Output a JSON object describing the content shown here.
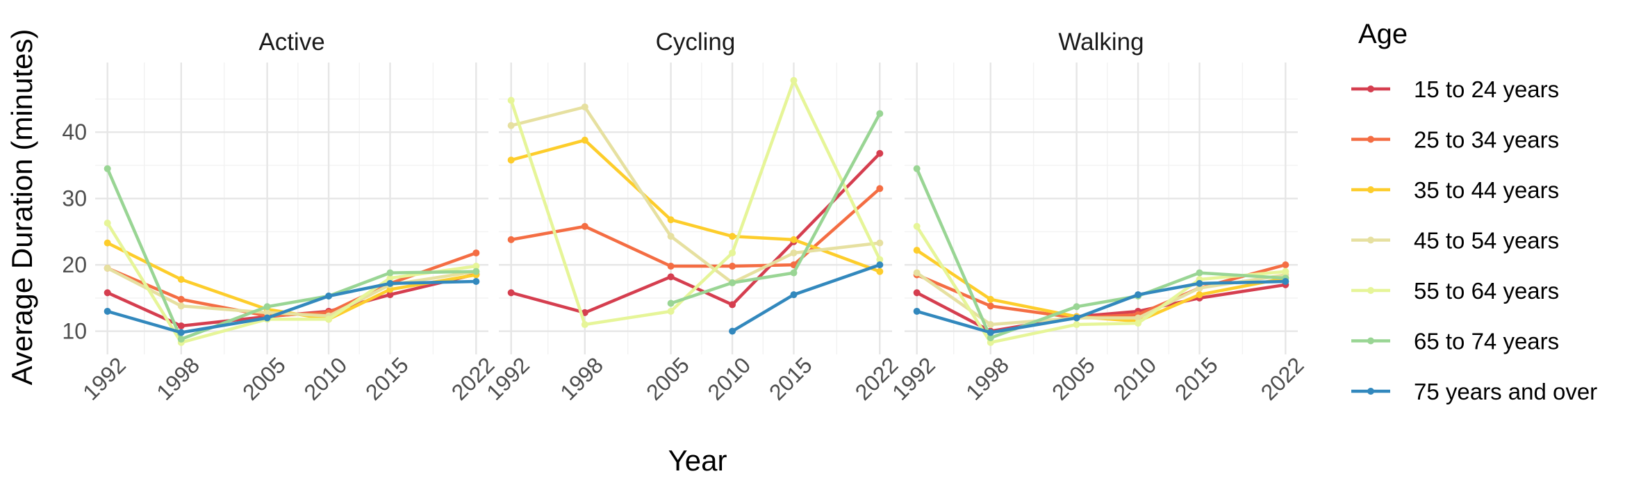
{
  "chart_data": {
    "type": "line",
    "xlabel": "Year",
    "ylabel": "Average Duration (minutes)",
    "x_ticks": [
      1992,
      1998,
      2005,
      2010,
      2015,
      2022
    ],
    "y_ticks": [
      10,
      20,
      30,
      40
    ],
    "xlim": [
      1991,
      2023
    ],
    "ylim": [
      6.5,
      50.5
    ],
    "grid": true,
    "legend": {
      "title": "Age",
      "placement": "right",
      "entries": [
        "15 to 24 years",
        "25 to 34 years",
        "35 to 44 years",
        "45 to 54 years",
        "55 to 64 years",
        "65 to 74 years",
        "75 years and over"
      ]
    },
    "colors": {
      "15 to 24 years": "#d53e4f",
      "25 to 34 years": "#f46d43",
      "35 to 44 years": "#fdcd2b",
      "45 to 54 years": "#e6e0a0",
      "55 to 64 years": "#e6f598",
      "65 to 74 years": "#99d594",
      "75 years and over": "#3288bd"
    },
    "panels": [
      {
        "title": "Active",
        "series": [
          {
            "name": "15 to 24 years",
            "x": [
              1992,
              1998,
              2005,
              2010,
              2015,
              2022
            ],
            "y": [
              15.8,
              10.8,
              12.2,
              13.0,
              15.5,
              18.6
            ]
          },
          {
            "name": "25 to 34 years",
            "x": [
              1992,
              1998,
              2005,
              2010,
              2015,
              2022
            ],
            "y": [
              19.5,
              14.8,
              12.3,
              12.8,
              17.2,
              21.8
            ]
          },
          {
            "name": "35 to 44 years",
            "x": [
              1992,
              1998,
              2005,
              2010,
              2015,
              2022
            ],
            "y": [
              23.3,
              17.8,
              13.3,
              11.8,
              16.3,
              18.5
            ]
          },
          {
            "name": "45 to 54 years",
            "x": [
              1992,
              1998,
              2005,
              2010,
              2015,
              2022
            ],
            "y": [
              19.5,
              13.8,
              12.8,
              12.3,
              17.0,
              19.0
            ]
          },
          {
            "name": "55 to 64 years",
            "x": [
              1992,
              1998,
              2005,
              2010,
              2015,
              2022
            ],
            "y": [
              26.3,
              8.3,
              11.8,
              11.8,
              18.0,
              19.8
            ]
          },
          {
            "name": "65 to 74 years",
            "x": [
              1992,
              1998,
              2005,
              2010,
              2015,
              2022
            ],
            "y": [
              34.5,
              8.8,
              13.7,
              15.3,
              18.8,
              19.0
            ]
          },
          {
            "name": "75 years and over",
            "x": [
              1992,
              1998,
              2005,
              2010,
              2015,
              2022
            ],
            "y": [
              13.0,
              9.8,
              12.0,
              15.3,
              17.2,
              17.5
            ]
          }
        ]
      },
      {
        "title": "Cycling",
        "series": [
          {
            "name": "15 to 24 years",
            "x": [
              1992,
              1998,
              2005,
              2010,
              2015,
              2022
            ],
            "y": [
              15.8,
              12.8,
              18.2,
              14.0,
              23.5,
              36.8
            ]
          },
          {
            "name": "25 to 34 years",
            "x": [
              1992,
              1998,
              2005,
              2010,
              2015,
              2022
            ],
            "y": [
              23.8,
              25.8,
              19.8,
              19.8,
              20.0,
              31.5
            ]
          },
          {
            "name": "35 to 44 years",
            "x": [
              1992,
              1998,
              2005,
              2010,
              2015,
              2022
            ],
            "y": [
              35.8,
              38.8,
              26.8,
              24.3,
              23.8,
              19.0
            ]
          },
          {
            "name": "45 to 54 years",
            "x": [
              1992,
              1998,
              2005,
              2010,
              2015,
              2022
            ],
            "y": [
              41.0,
              43.8,
              24.3,
              17.3,
              21.8,
              23.3
            ]
          },
          {
            "name": "55 to 64 years",
            "x": [
              1992,
              1998,
              2005,
              2010,
              2015,
              2022
            ],
            "y": [
              44.8,
              11.0,
              13.0,
              21.8,
              47.8,
              20.8
            ]
          },
          {
            "name": "65 to 74 years",
            "x": [
              2005,
              2010,
              2015,
              2022
            ],
            "y": [
              14.2,
              17.3,
              18.8,
              42.8
            ]
          },
          {
            "name": "75 years and over",
            "x": [
              2010,
              2015,
              2022
            ],
            "y": [
              10.0,
              15.5,
              20.0
            ]
          }
        ]
      },
      {
        "title": "Walking",
        "series": [
          {
            "name": "15 to 24 years",
            "x": [
              1992,
              1998,
              2005,
              2010,
              2015,
              2022
            ],
            "y": [
              15.8,
              10.0,
              12.2,
              13.0,
              15.0,
              17.0
            ]
          },
          {
            "name": "25 to 34 years",
            "x": [
              1992,
              1998,
              2005,
              2010,
              2015,
              2022
            ],
            "y": [
              18.5,
              13.8,
              12.0,
              12.5,
              16.5,
              20.0
            ]
          },
          {
            "name": "35 to 44 years",
            "x": [
              1992,
              1998,
              2005,
              2010,
              2015,
              2022
            ],
            "y": [
              22.2,
              14.8,
              12.2,
              11.5,
              15.5,
              18.0
            ]
          },
          {
            "name": "45 to 54 years",
            "x": [
              1992,
              1998,
              2005,
              2010,
              2015,
              2022
            ],
            "y": [
              18.8,
              11.0,
              12.0,
              12.0,
              16.5,
              18.5
            ]
          },
          {
            "name": "55 to 64 years",
            "x": [
              1992,
              1998,
              2005,
              2010,
              2015,
              2022
            ],
            "y": [
              25.8,
              8.3,
              11.0,
              11.2,
              17.8,
              19.0
            ]
          },
          {
            "name": "65 to 74 years",
            "x": [
              1992,
              1998,
              2005,
              2010,
              2015,
              2022
            ],
            "y": [
              34.5,
              9.0,
              13.7,
              15.3,
              18.8,
              18.0
            ]
          },
          {
            "name": "75 years and over",
            "x": [
              1992,
              1998,
              2005,
              2010,
              2015,
              2022
            ],
            "y": [
              13.0,
              9.8,
              12.0,
              15.5,
              17.2,
              17.5
            ]
          }
        ]
      }
    ]
  }
}
